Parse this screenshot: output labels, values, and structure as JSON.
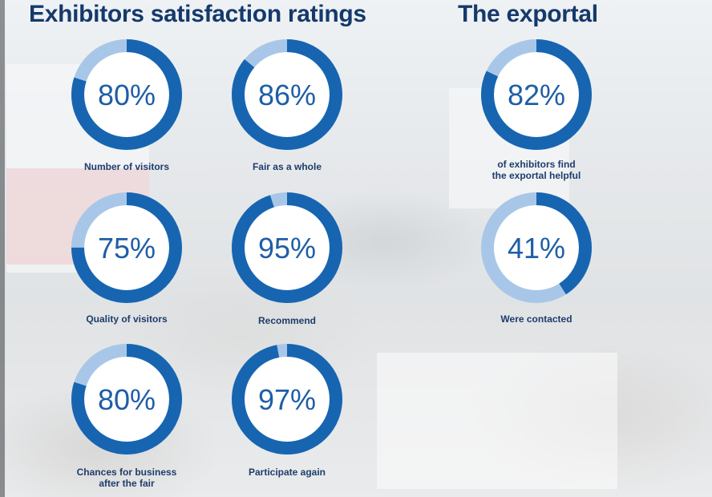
{
  "titles": {
    "left": "Exhibitors satisfaction ratings",
    "right": "The exportal"
  },
  "colors": {
    "title": "#15396b",
    "ring_fill": "#1765b1",
    "ring_track": "#a8c7e8",
    "percent_text": "#1e5ea6",
    "label_text": "#1d3d6b"
  },
  "chart_data": [
    {
      "type": "donut-grid",
      "title": "Exhibitors satisfaction ratings",
      "items": [
        {
          "label": "Number of visitors",
          "value": 80,
          "display": "80%"
        },
        {
          "label": "Fair as a whole",
          "value": 86,
          "display": "86%"
        },
        {
          "label": "Quality of visitors",
          "value": 75,
          "display": "75%"
        },
        {
          "label": "Recommend",
          "value": 95,
          "display": "95%"
        },
        {
          "label": "Chances for business after the fair",
          "label_lines": [
            "Chances for business",
            "after the fair"
          ],
          "value": 80,
          "display": "80%"
        },
        {
          "label": "Participate again",
          "value": 97,
          "display": "97%"
        }
      ]
    },
    {
      "type": "donut-grid",
      "title": "The exportal",
      "items": [
        {
          "label": "of exhibitors find the exportal helpful",
          "label_lines": [
            "of exhibitors find",
            "the exportal helpful"
          ],
          "value": 82,
          "display": "82%"
        },
        {
          "label": "Were contacted",
          "value": 41,
          "display": "41%"
        }
      ]
    }
  ]
}
